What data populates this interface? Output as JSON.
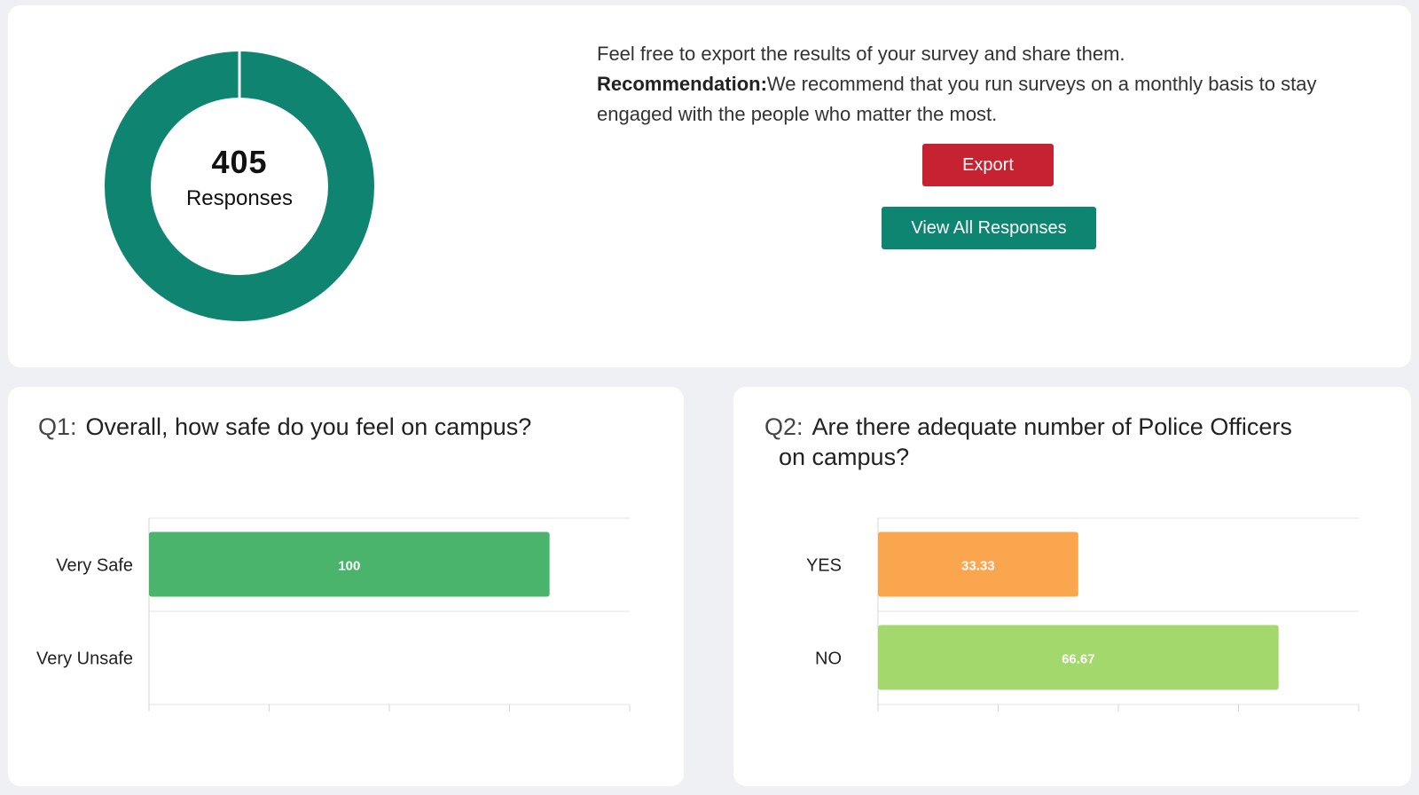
{
  "summary": {
    "response_count": "405",
    "response_label": "Responses",
    "intro_text": "Feel free to export the results of your survey and share them.",
    "recommendation_label": "Recommendation:",
    "recommendation_text": "We recommend that you run surveys on a monthly basis to stay engaged with the people who matter the most.",
    "export_label": "Export",
    "view_all_label": "View All Responses",
    "donut_color": "#0f8571"
  },
  "q1": {
    "number": "Q1:",
    "question": "Overall, how safe do you feel on campus?"
  },
  "q2": {
    "number": "Q2:",
    "question_line1": "Are there adequate number of Police Officers",
    "question_line2": "on campus?"
  },
  "chart_data": [
    {
      "type": "bar",
      "orientation": "horizontal",
      "categories": [
        "Very Safe",
        "Very Unsafe"
      ],
      "values": [
        100,
        0
      ],
      "data_labels": [
        "100",
        ""
      ],
      "colors": [
        "#4bb46c",
        "#4bb46c"
      ],
      "xlim": [
        0,
        120
      ],
      "grid": true
    },
    {
      "type": "bar",
      "orientation": "horizontal",
      "categories": [
        "YES",
        "NO"
      ],
      "values": [
        33.33,
        66.67
      ],
      "data_labels": [
        "33.33",
        "66.67"
      ],
      "colors": [
        "#f9a64f",
        "#a3d86c"
      ],
      "xlim": [
        0,
        80
      ],
      "grid": true
    }
  ]
}
